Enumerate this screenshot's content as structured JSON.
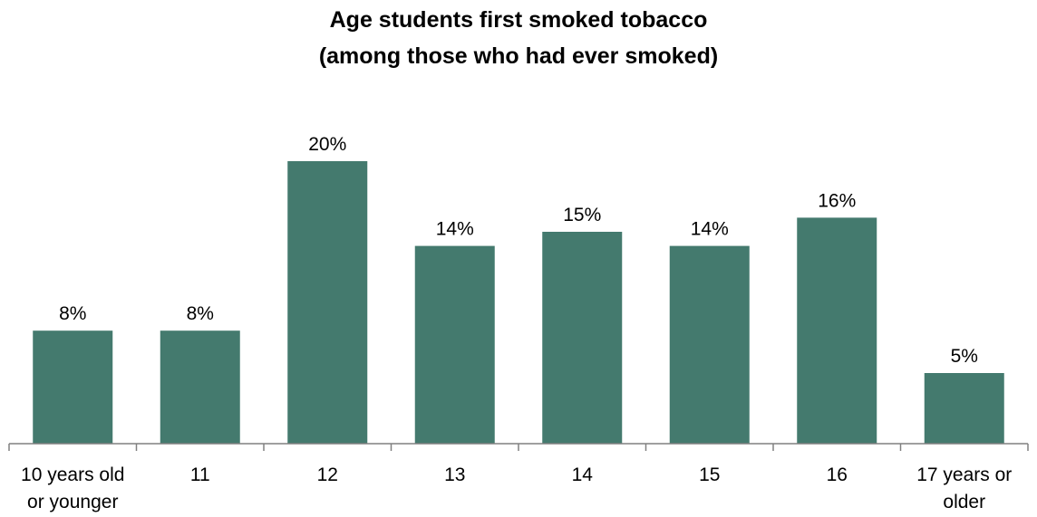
{
  "chart_data": {
    "type": "bar",
    "title": [
      "Age students first smoked tobacco",
      "(among those who had ever smoked)"
    ],
    "categories": [
      [
        "10 years old",
        "or younger"
      ],
      [
        "11"
      ],
      [
        "12"
      ],
      [
        "13"
      ],
      [
        "14"
      ],
      [
        "15"
      ],
      [
        "16"
      ],
      [
        "17 years or",
        "older"
      ]
    ],
    "series": [
      {
        "values": [
          8,
          8,
          20,
          14,
          15,
          14,
          16,
          5
        ],
        "data_labels": [
          "8%",
          "8%",
          "20%",
          "14%",
          "15%",
          "14%",
          "16%",
          "5%"
        ],
        "color": "#447a6e"
      }
    ],
    "value_unit": "%",
    "ylim": [
      0,
      20
    ],
    "y_axis_visible": false,
    "grid": false,
    "legend": "none"
  }
}
